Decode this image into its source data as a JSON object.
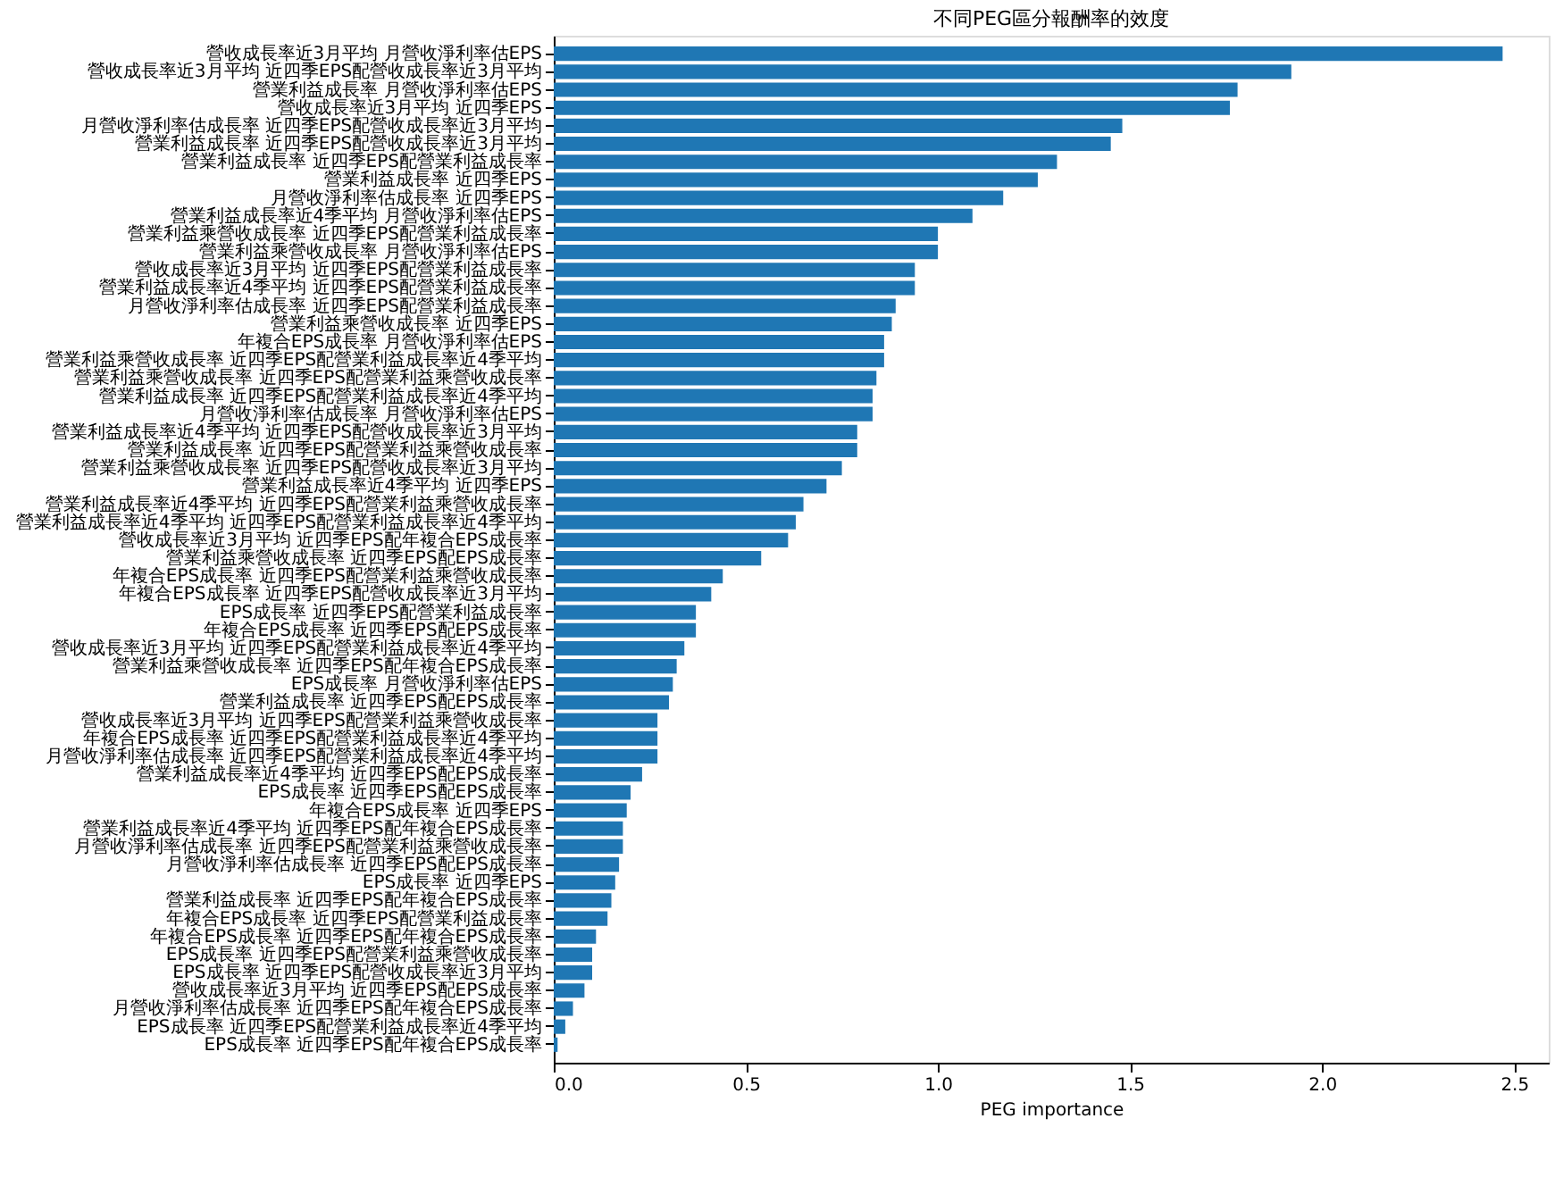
{
  "chart_data": {
    "type": "bar",
    "orientation": "horizontal",
    "title": "不同PEG區分報酬率的效度",
    "xlabel": "PEG importance",
    "categories": [
      "營收成長率近3月平均  月營收淨利率估EPS",
      "營收成長率近3月平均  近四季EPS配營收成長率近3月平均",
      "營業利益成長率  月營收淨利率估EPS",
      "營收成長率近3月平均  近四季EPS",
      "月營收淨利率估成長率  近四季EPS配營收成長率近3月平均",
      "營業利益成長率  近四季EPS配營收成長率近3月平均",
      "營業利益成長率  近四季EPS配營業利益成長率",
      "營業利益成長率  近四季EPS",
      "月營收淨利率估成長率  近四季EPS",
      "營業利益成長率近4季平均  月營收淨利率估EPS",
      "營業利益乘營收成長率  近四季EPS配營業利益成長率",
      "營業利益乘營收成長率  月營收淨利率估EPS",
      "營收成長率近3月平均  近四季EPS配營業利益成長率",
      "營業利益成長率近4季平均  近四季EPS配營業利益成長率",
      "月營收淨利率估成長率  近四季EPS配營業利益成長率",
      "營業利益乘營收成長率  近四季EPS",
      "年複合EPS成長率  月營收淨利率估EPS",
      "營業利益乘營收成長率  近四季EPS配營業利益成長率近4季平均",
      "營業利益乘營收成長率  近四季EPS配營業利益乘營收成長率",
      "營業利益成長率  近四季EPS配營業利益成長率近4季平均",
      "月營收淨利率估成長率  月營收淨利率估EPS",
      "營業利益成長率近4季平均  近四季EPS配營收成長率近3月平均",
      "營業利益成長率  近四季EPS配營業利益乘營收成長率",
      "營業利益乘營收成長率  近四季EPS配營收成長率近3月平均",
      "營業利益成長率近4季平均  近四季EPS",
      "營業利益成長率近4季平均  近四季EPS配營業利益乘營收成長率",
      "營業利益成長率近4季平均  近四季EPS配營業利益成長率近4季平均",
      "營收成長率近3月平均  近四季EPS配年複合EPS成長率",
      "營業利益乘營收成長率  近四季EPS配EPS成長率",
      "年複合EPS成長率  近四季EPS配營業利益乘營收成長率",
      "年複合EPS成長率  近四季EPS配營收成長率近3月平均",
      "EPS成長率  近四季EPS配營業利益成長率",
      "年複合EPS成長率  近四季EPS配EPS成長率",
      "營收成長率近3月平均  近四季EPS配營業利益成長率近4季平均",
      "營業利益乘營收成長率  近四季EPS配年複合EPS成長率",
      "EPS成長率  月營收淨利率估EPS",
      "營業利益成長率  近四季EPS配EPS成長率",
      "營收成長率近3月平均  近四季EPS配營業利益乘營收成長率",
      "年複合EPS成長率  近四季EPS配營業利益成長率近4季平均",
      "月營收淨利率估成長率  近四季EPS配營業利益成長率近4季平均",
      "營業利益成長率近4季平均  近四季EPS配EPS成長率",
      "EPS成長率  近四季EPS配EPS成長率",
      "年複合EPS成長率  近四季EPS",
      "營業利益成長率近4季平均  近四季EPS配年複合EPS成長率",
      "月營收淨利率估成長率  近四季EPS配營業利益乘營收成長率",
      "月營收淨利率估成長率  近四季EPS配EPS成長率",
      "EPS成長率  近四季EPS",
      "營業利益成長率  近四季EPS配年複合EPS成長率",
      "年複合EPS成長率  近四季EPS配營業利益成長率",
      "年複合EPS成長率  近四季EPS配年複合EPS成長率",
      "EPS成長率  近四季EPS配營業利益乘營收成長率",
      "EPS成長率  近四季EPS配營收成長率近3月平均",
      "營收成長率近3月平均  近四季EPS配EPS成長率",
      "月營收淨利率估成長率  近四季EPS配年複合EPS成長率",
      "EPS成長率  近四季EPS配營業利益成長率近4季平均",
      "EPS成長率  近四季EPS配年複合EPS成長率"
    ],
    "values": [
      2.47,
      1.92,
      1.78,
      1.76,
      1.48,
      1.45,
      1.31,
      1.26,
      1.17,
      1.09,
      1.0,
      1.0,
      0.94,
      0.94,
      0.89,
      0.88,
      0.86,
      0.86,
      0.84,
      0.83,
      0.83,
      0.79,
      0.79,
      0.75,
      0.71,
      0.65,
      0.63,
      0.61,
      0.54,
      0.44,
      0.41,
      0.37,
      0.37,
      0.34,
      0.32,
      0.31,
      0.3,
      0.27,
      0.27,
      0.27,
      0.23,
      0.2,
      0.19,
      0.18,
      0.18,
      0.17,
      0.16,
      0.15,
      0.14,
      0.11,
      0.1,
      0.1,
      0.08,
      0.05,
      0.03,
      0.01
    ],
    "color": "#1f77b4",
    "xlim": [
      0,
      2.59
    ],
    "xticks": [
      {
        "value": 0,
        "label": "0.0"
      },
      {
        "value": 0.5,
        "label": "0.5"
      },
      {
        "value": 1,
        "label": "1.0"
      },
      {
        "value": 1.5,
        "label": "1.5"
      },
      {
        "value": 2,
        "label": "2.0"
      },
      {
        "value": 2.5,
        "label": "2.5"
      }
    ],
    "grid": false
  }
}
